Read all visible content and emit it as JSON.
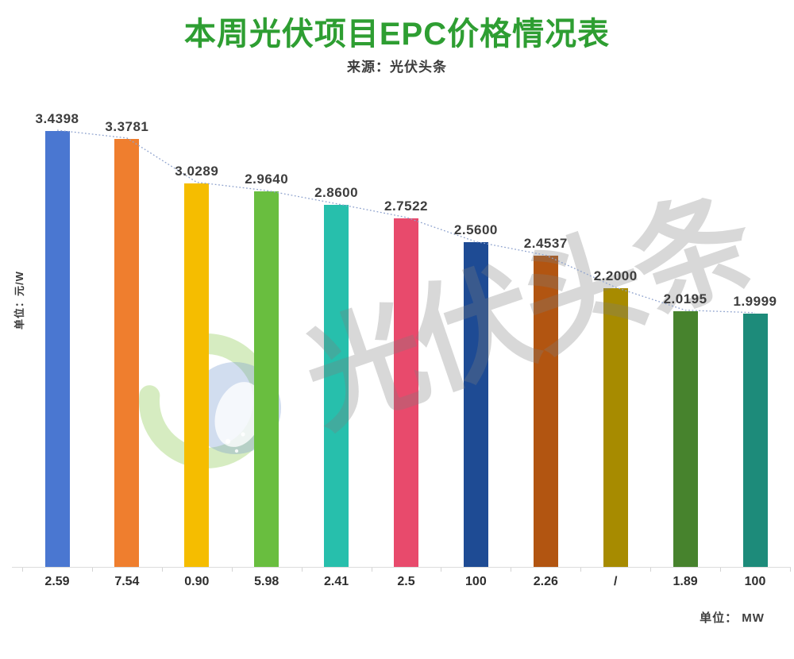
{
  "header": {
    "title": "本周光伏项目EPC价格情况表",
    "title_color": "#2E9E32",
    "subtitle": "来源：光伏头条"
  },
  "watermark": {
    "text": "光伏头条",
    "logo_name": "pv-headlines-swirl-logo",
    "logo_ring_color": "rgba(148,204,92,0.38)",
    "logo_inner_color": "rgba(122,158,208,0.35)"
  },
  "axes": {
    "y_unit_label": "单位：元/W",
    "x_unit_label": "单位： MW"
  },
  "chart_data": {
    "type": "bar",
    "title": "本周光伏项目EPC价格情况表",
    "source": "光伏头条",
    "categories": [
      "2.59",
      "7.54",
      "0.90",
      "5.98",
      "2.41",
      "2.5",
      "100",
      "2.26",
      "/",
      "1.89",
      "100"
    ],
    "values": [
      3.4398,
      3.3781,
      3.0289,
      2.964,
      2.86,
      2.7522,
      2.56,
      2.4537,
      2.2,
      2.0195,
      1.9999
    ],
    "value_labels": [
      "3.4398",
      "3.3781",
      "3.0289",
      "2.9640",
      "2.8600",
      "2.7522",
      "2.5600",
      "2.4537",
      "2.2000",
      "2.0195",
      "1.9999"
    ],
    "bar_colors": [
      "#4A77D1",
      "#EF7E2E",
      "#F5BD00",
      "#69BE3F",
      "#27BFAC",
      "#E84A6C",
      "#1E4B94",
      "#B25511",
      "#A78B00",
      "#47832D",
      "#1D8B7A"
    ],
    "xlabel": "单位： MW",
    "ylabel": "单位：元/W",
    "ylim": [
      0,
      3.6
    ],
    "grid": false,
    "legend": false,
    "trendline": {
      "show": true,
      "style": "dotted",
      "color": "#8FA3CE"
    }
  }
}
